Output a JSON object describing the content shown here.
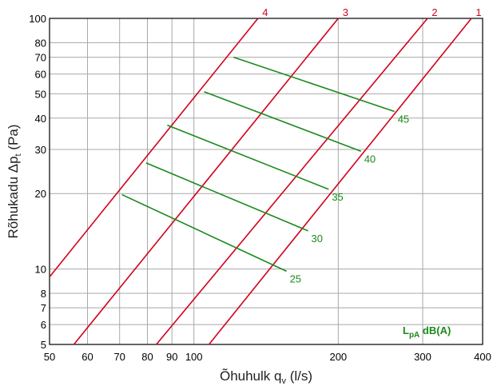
{
  "chart_data": {
    "type": "line",
    "xscale": "log",
    "yscale": "log",
    "xlim": [
      50,
      400
    ],
    "ylim": [
      5,
      100
    ],
    "xlabel": "Õhuhulk q",
    "xlabel_sub": "v",
    "xlabel_unit": " (l/s)",
    "ylabel": "Rõhukadu Δp",
    "ylabel_sub": "t",
    "ylabel_unit": " (Pa)",
    "x_ticks": [
      50,
      60,
      70,
      80,
      90,
      100,
      200,
      300,
      400
    ],
    "x_tick_labels": [
      "50",
      "60",
      "70",
      "80",
      "90",
      "100",
      "200",
      "300",
      "400"
    ],
    "y_ticks": [
      5,
      6,
      7,
      8,
      10,
      20,
      30,
      40,
      50,
      60,
      70,
      80,
      100
    ],
    "y_tick_labels": [
      "5",
      "6",
      "7",
      "8",
      "10",
      "20",
      "30",
      "40",
      "50",
      "60",
      "70",
      "80",
      "100"
    ],
    "grid": true,
    "series": [
      {
        "name": "1",
        "color": "#d0021b",
        "x": [
          107.5,
          379
        ],
        "y": [
          5,
          100
        ]
      },
      {
        "name": "2",
        "color": "#d0021b",
        "x": [
          83.5,
          307
        ],
        "y": [
          5,
          100
        ]
      },
      {
        "name": "3",
        "color": "#d0021b",
        "x": [
          56.2,
          200
        ],
        "y": [
          5,
          100
        ]
      },
      {
        "name": "4",
        "color": "#d0021b",
        "x": [
          50,
          136
        ],
        "y": [
          9.3,
          100
        ]
      }
    ],
    "noise_levels": [
      {
        "name": "25",
        "color": "#1a8a1a",
        "x": [
          70.8,
          156
        ],
        "y": [
          19.8,
          9.8
        ]
      },
      {
        "name": "30",
        "color": "#1a8a1a",
        "x": [
          79.5,
          173
        ],
        "y": [
          26.5,
          14.2
        ]
      },
      {
        "name": "35",
        "color": "#1a8a1a",
        "x": [
          88,
          191
        ],
        "y": [
          37.5,
          20.8
        ]
      },
      {
        "name": "40",
        "color": "#1a8a1a",
        "x": [
          105,
          223
        ],
        "y": [
          51,
          29.5
        ]
      },
      {
        "name": "45",
        "color": "#1a8a1a",
        "x": [
          121,
          262
        ],
        "y": [
          70,
          42.5
        ]
      }
    ],
    "legend": {
      "text": "L",
      "sub": "pA",
      "rest": " dB(A)",
      "placement": "bottom-right"
    }
  }
}
